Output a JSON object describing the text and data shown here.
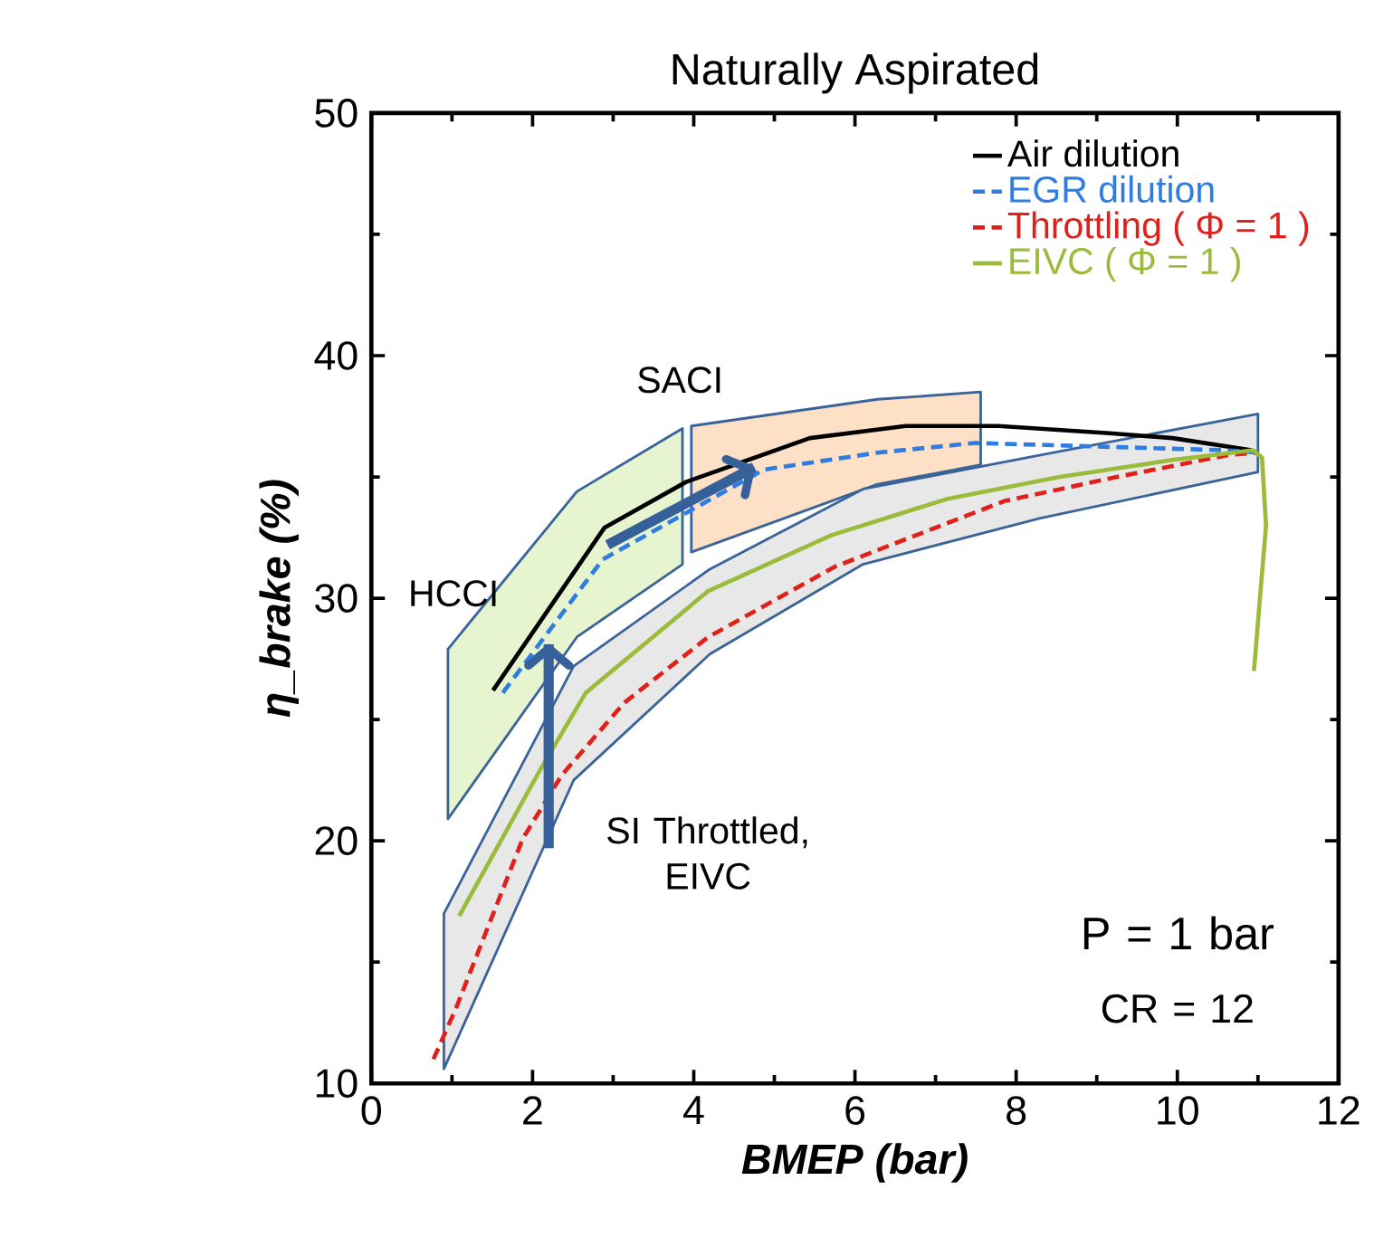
{
  "chart_data": {
    "type": "line",
    "title": "Naturally Aspirated",
    "xlabel": "BMEP (bar)",
    "ylabel": "η_brake  (%)",
    "xlim": [
      0,
      12
    ],
    "ylim": [
      10,
      50
    ],
    "xticks": [
      0,
      2,
      4,
      6,
      8,
      10,
      12
    ],
    "yticks": [
      10,
      20,
      30,
      40,
      50
    ],
    "legend": "top right",
    "series": [
      {
        "type": "area",
        "color": "#e6f5d0",
        "x": [
          0.95,
          2.55,
          3.86
        ],
        "values": [
          null,
          null,
          null
        ],
        "lower": [
          20.9,
          28.4,
          31.4
        ],
        "upper": [
          27.9,
          34.4,
          37.0
        ]
      },
      {
        "type": "area",
        "color": "#fde0c5",
        "x": [
          3.97,
          6.28,
          7.56
        ],
        "values": [
          null,
          null,
          null
        ],
        "lower": [
          31.9,
          34.7,
          35.5
        ],
        "upper": [
          37.1,
          38.2,
          38.5
        ]
      },
      {
        "type": "area",
        "color": "#e8e8e8",
        "x": [
          0.9,
          2.51,
          4.2,
          6.1,
          8.3,
          11.0
        ],
        "values": [
          null,
          null,
          null,
          null,
          null,
          null
        ],
        "lower": [
          10.6,
          22.5,
          27.7,
          31.4,
          33.3,
          35.2
        ],
        "upper": [
          17.0,
          27.2,
          31.2,
          34.5,
          35.9,
          37.6
        ]
      },
      {
        "name": "Air dilution",
        "type": "line",
        "line_style": "solid",
        "color": "#000000",
        "x": [
          1.51,
          2.89,
          3.91,
          5.44,
          6.63,
          7.78,
          9.16,
          9.94,
          10.92
        ],
        "values": [
          26.2,
          32.9,
          34.8,
          36.6,
          37.1,
          37.1,
          36.8,
          36.6,
          36.1
        ]
      },
      {
        "name": "EGR dilution",
        "type": "line",
        "line_style": "dashed",
        "color": "#2f7de1",
        "x": [
          1.63,
          2.87,
          4.87,
          6.28,
          7.49,
          10.6,
          11.0
        ],
        "values": [
          26.1,
          31.6,
          35.3,
          36.0,
          36.4,
          36.1,
          36.0
        ]
      },
      {
        "name": "Throttling ( Φ = 1 )",
        "type": "line",
        "line_style": "dashed",
        "color": "#e0201b",
        "x": [
          0.77,
          1.05,
          1.88,
          2.36,
          3.14,
          4.18,
          5.75,
          7.85,
          9.25,
          10.63,
          11.0
        ],
        "values": [
          11.0,
          13.1,
          20.1,
          22.7,
          25.7,
          28.4,
          31.3,
          34.0,
          35.0,
          35.9,
          36.0
        ]
      },
      {
        "name": "EIVC ( Φ = 1 )",
        "type": "line",
        "line_style": "solid",
        "color": "#9bbb3b",
        "x": [
          1.09,
          2.09,
          2.66,
          4.18,
          5.71,
          7.15,
          8.54,
          9.94,
          10.94,
          11.05,
          11.1,
          11.0,
          10.95
        ],
        "values": [
          16.9,
          22.9,
          26.1,
          30.3,
          32.6,
          34.1,
          35.0,
          35.7,
          36.1,
          35.8,
          33.0,
          29.0,
          27.0
        ]
      },
      {
        "type": "line",
        "line_style": "solid",
        "color": "#36609a",
        "x": [
          2.2,
          2.2
        ],
        "values": [
          19.7,
          28.1
        ]
      },
      {
        "type": "line",
        "line_style": "solid",
        "color": "#36609a",
        "x": [
          2.93,
          4.75
        ],
        "values": [
          32.2,
          35.4
        ]
      }
    ],
    "annotations": [
      "HCCI",
      "SACI",
      "SI Throttled, EIVC",
      "P = 1 bar",
      "CR = 12"
    ]
  }
}
